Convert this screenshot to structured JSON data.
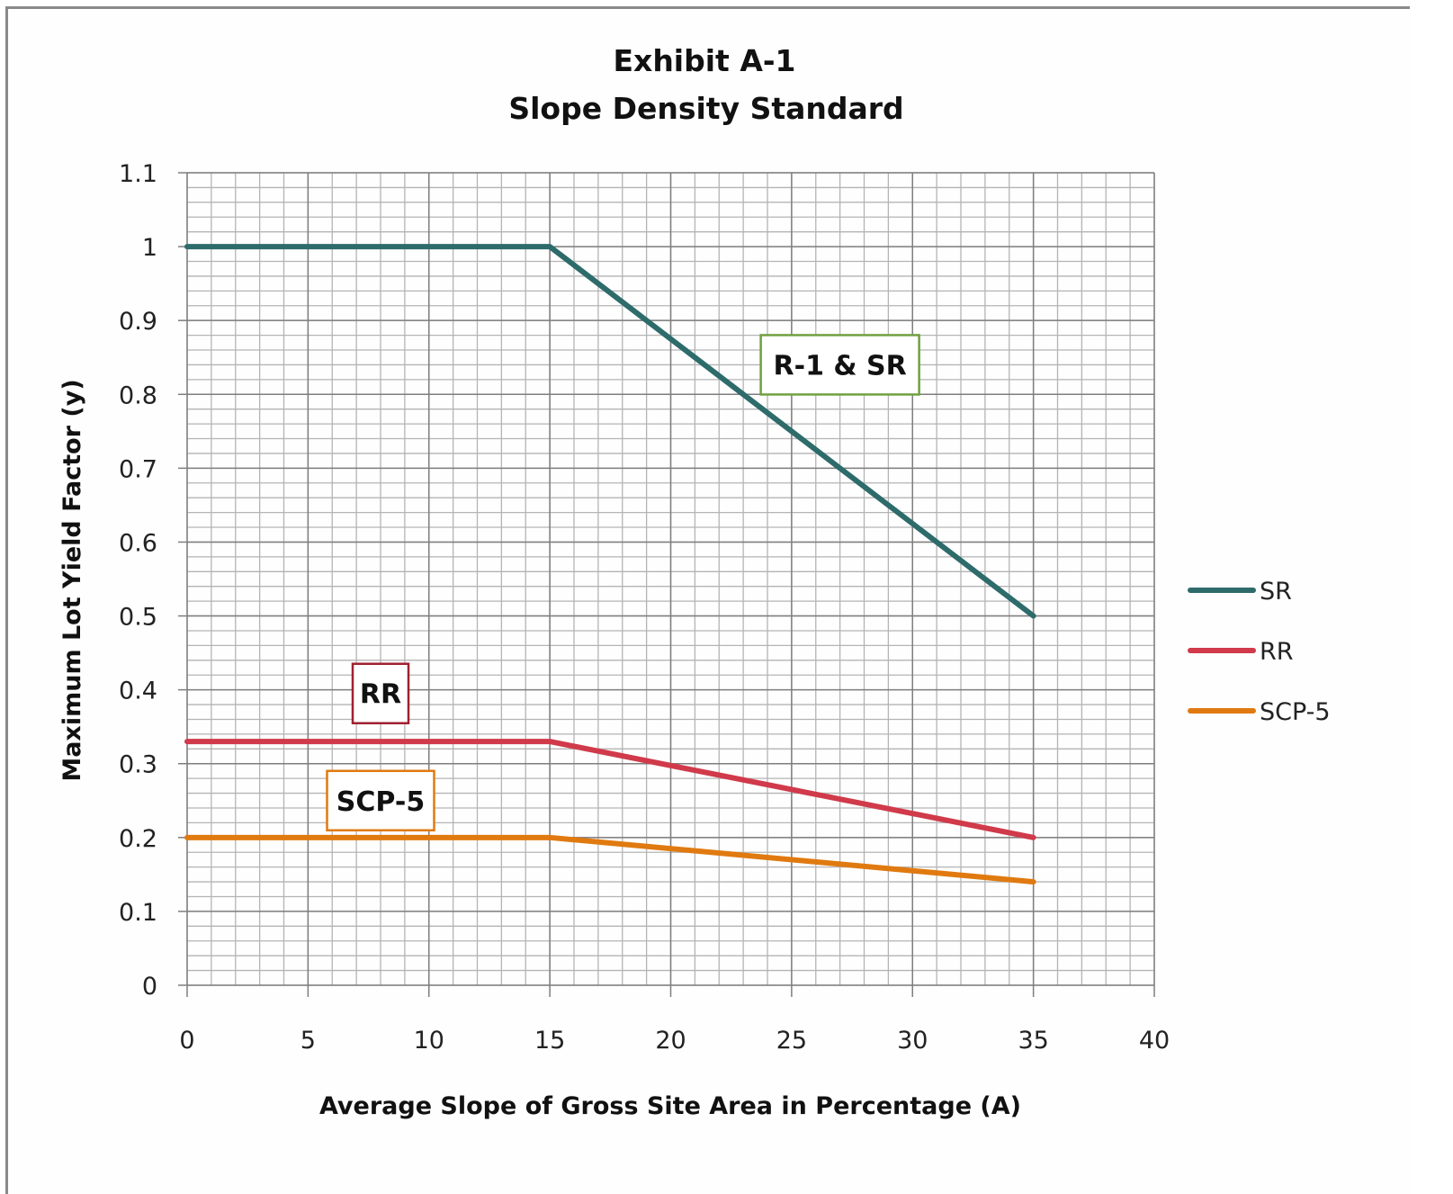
{
  "chart_data": {
    "type": "line",
    "title": "Exhibit A-1",
    "subtitle": "Slope Density Standard",
    "xlabel": "Average Slope of Gross Site Area in Percentage (A)",
    "ylabel": "Maximum Lot Yield Factor (y)",
    "xlim": [
      0,
      40
    ],
    "ylim": [
      0,
      1.1
    ],
    "x_ticks": [
      0,
      5,
      10,
      15,
      20,
      25,
      30,
      35,
      40
    ],
    "x_tick_labels": [
      "0",
      "5",
      "10",
      "15",
      "20",
      "25",
      "30",
      "35",
      "40"
    ],
    "y_ticks": [
      0,
      0.1,
      0.2,
      0.3,
      0.4,
      0.5,
      0.6,
      0.7,
      0.8,
      0.9,
      1,
      1.1
    ],
    "y_tick_labels": [
      "0",
      "0.1",
      "0.2",
      "0.3",
      "0.4",
      "0.5",
      "0.6",
      "0.7",
      "0.8",
      "0.9",
      "1",
      "1.1"
    ],
    "x_minor_step": 1,
    "y_minor_step": 0.02,
    "grid": true,
    "legend_position": "right",
    "series": [
      {
        "name": "SR",
        "color": "#2e6b6b",
        "x": [
          0,
          15,
          35
        ],
        "y": [
          1.0,
          1.0,
          0.5
        ]
      },
      {
        "name": "RR",
        "color": "#d03a4a",
        "x": [
          0,
          15,
          35
        ],
        "y": [
          0.33,
          0.33,
          0.2
        ]
      },
      {
        "name": "SCP-5",
        "color": "#e07a10",
        "x": [
          0,
          15,
          35
        ],
        "y": [
          0.2,
          0.2,
          0.14
        ]
      }
    ],
    "annotations": [
      {
        "text": "R-1 & SR",
        "x": 27,
        "y": 0.84,
        "border_color": "#70a040"
      },
      {
        "text": "RR",
        "x": 8,
        "y": 0.395,
        "border_color": "#a02030"
      },
      {
        "text": "SCP-5",
        "x": 8,
        "y": 0.25,
        "border_color": "#e07a10"
      }
    ]
  }
}
